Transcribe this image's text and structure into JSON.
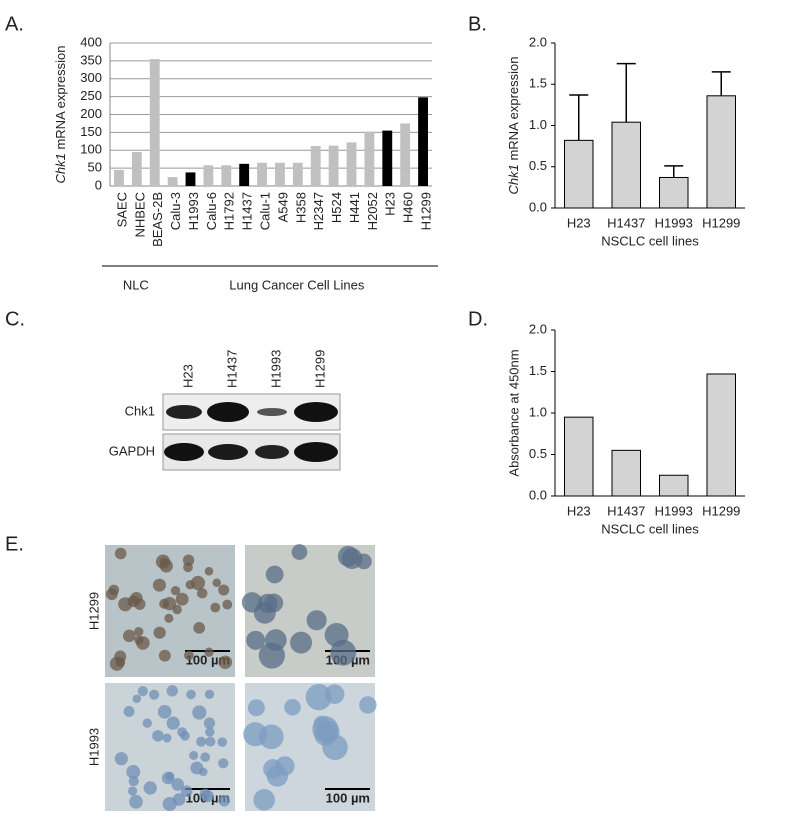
{
  "chart_data": [
    {
      "type": "bar",
      "panel": "A.",
      "ylabel_parts": [
        "Chk1",
        "mRNA expression"
      ],
      "categories": [
        "SAEC",
        "NHBEC",
        "BEAS-2B",
        "Calu-3",
        "H1993",
        "Calu-6",
        "H1792",
        "H1437",
        "Calu-1",
        "A549",
        "H358",
        "H2347",
        "H524",
        "H441",
        "H2052",
        "H23",
        "H460",
        "H1299"
      ],
      "values": [
        45,
        95,
        355,
        25,
        38,
        58,
        58,
        62,
        65,
        65,
        65,
        112,
        113,
        122,
        152,
        155,
        175,
        248
      ],
      "colors": [
        "#c0c0c0",
        "#c0c0c0",
        "#c0c0c0",
        "#c0c0c0",
        "#000000",
        "#c0c0c0",
        "#c0c0c0",
        "#000000",
        "#c0c0c0",
        "#c0c0c0",
        "#c0c0c0",
        "#c0c0c0",
        "#c0c0c0",
        "#c0c0c0",
        "#c0c0c0",
        "#000000",
        "#c0c0c0",
        "#000000"
      ],
      "groups": [
        "NLC",
        "Lung Cancer Cell Lines"
      ],
      "ylim": [
        0,
        400
      ],
      "yticks": [
        0,
        50,
        100,
        150,
        200,
        250,
        300,
        350,
        400
      ],
      "grid": true
    },
    {
      "type": "bar",
      "panel": "B.",
      "ylabel_parts": [
        "Chk1",
        "mRNA expression"
      ],
      "xlabel": "NSCLC cell lines",
      "categories": [
        "H23",
        "H1437",
        "H1993",
        "H1299"
      ],
      "values": [
        0.82,
        1.04,
        0.37,
        1.36
      ],
      "errors": [
        0.55,
        0.71,
        0.14,
        0.29
      ],
      "color": "#d3d3d3",
      "edgecolor": "#000000",
      "ylim": [
        0,
        2
      ],
      "yticks": [
        {
          "value": 0,
          "label": "0.0"
        },
        0.5,
        {
          "value": 1,
          "label": "1.0"
        },
        1.5,
        {
          "value": 2,
          "label": "2.0"
        }
      ],
      "grid": false
    },
    {
      "type": "bar",
      "panel": "D.",
      "ylabel": "Absorbance at 450nm",
      "xlabel": "NSCLC cell lines",
      "categories": [
        "H23",
        "H1437",
        "H1993",
        "H1299"
      ],
      "values": [
        0.95,
        0.55,
        0.25,
        1.47
      ],
      "color": "#d3d3d3",
      "edgecolor": "#000000",
      "ylim": [
        0,
        2
      ],
      "yticks": [
        {
          "value": 0,
          "label": "0.0"
        },
        0.5,
        {
          "value": 1,
          "label": "1.0"
        },
        1.5,
        {
          "value": 2,
          "label": "2.0"
        }
      ],
      "grid": false
    }
  ],
  "blot": {
    "panel": "C.",
    "lanes": [
      "H23",
      "H1437",
      "H1993",
      "H1299"
    ],
    "rows": [
      "Chk1",
      "GAPDH"
    ]
  },
  "ihc": {
    "panel": "E.",
    "rows": [
      "H1299",
      "H1993"
    ],
    "scale_bars": [
      "100 µm",
      "100 µm",
      "100 µm",
      "100 µm"
    ]
  }
}
